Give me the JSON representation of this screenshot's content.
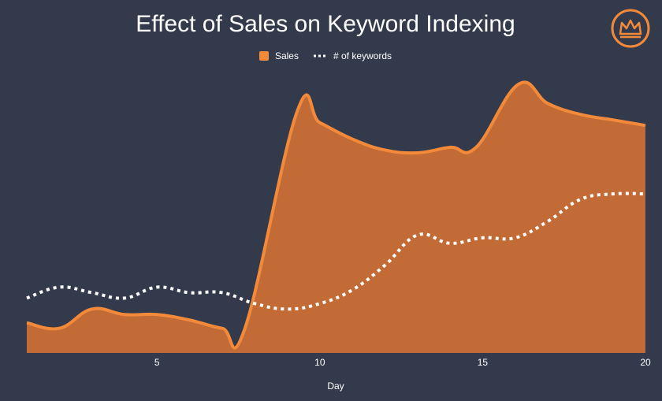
{
  "chart_data": {
    "type": "area",
    "title": "Effect of Sales on Keyword Indexing",
    "xlabel": "Day",
    "ylabel": "",
    "xlim": [
      1,
      20
    ],
    "ylim": [
      0,
      100
    ],
    "x_ticks": [
      5,
      10,
      15,
      20
    ],
    "grid": false,
    "legend_position": "top-center",
    "x": [
      1,
      2,
      3,
      4,
      5,
      6,
      7,
      7.7,
      9.3,
      10,
      11,
      12,
      13,
      14,
      14.8,
      16.1,
      17,
      18,
      19,
      20
    ],
    "series": [
      {
        "name": "Sales",
        "style": "filled-area",
        "color": "#f38a3a",
        "fill": "#c26b36",
        "values": [
          11,
          9,
          16,
          14,
          14,
          12,
          9,
          9,
          88,
          84,
          78,
          74,
          73,
          75,
          75,
          98,
          91,
          87,
          85,
          83
        ]
      },
      {
        "name": "# of keywords",
        "style": "dotted-line",
        "color": "#ffffff",
        "x": [
          1,
          2,
          3,
          4,
          5,
          6,
          7,
          8,
          9,
          10,
          11,
          12,
          13,
          14,
          15,
          16,
          17,
          18,
          19,
          20
        ],
        "values": [
          20,
          24,
          22,
          20,
          24,
          22,
          22,
          18,
          16,
          18,
          23,
          32,
          43,
          40,
          42,
          42,
          48,
          56,
          58,
          58
        ]
      }
    ]
  },
  "logo": {
    "name": "crown-logo",
    "color": "#f38a3a"
  }
}
